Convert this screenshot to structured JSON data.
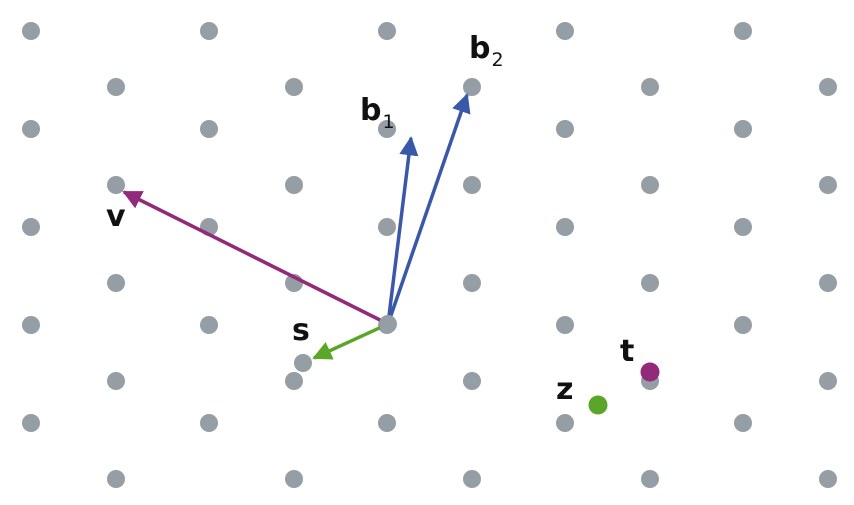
{
  "diagram": {
    "labels": {
      "b1": "b",
      "b1_sub": "1",
      "b2": "b",
      "b2_sub": "2",
      "v": "v",
      "s": "s",
      "t": "t",
      "z": "z"
    },
    "colors": {
      "lattice_point": "#959ea4",
      "basis_vector": "#3a58a8",
      "v_vector": "#93297a",
      "s_vector": "#5aa628",
      "t_point": "#93297a",
      "z_point": "#5aa628",
      "background": "#ffffff"
    }
  }
}
